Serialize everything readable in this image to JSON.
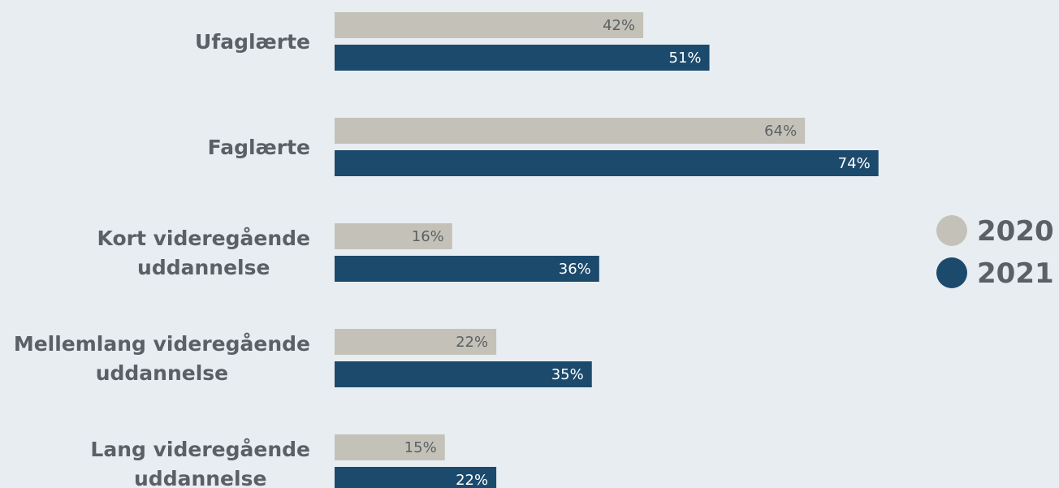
{
  "chart_data": {
    "type": "bar",
    "orientation": "horizontal",
    "categories": [
      [
        "Ufaglærte"
      ],
      [
        "Faglærte"
      ],
      [
        "Kort videregående",
        "uddannelse"
      ],
      [
        "Mellemlang videregående",
        "uddannelse"
      ],
      [
        "Lang videregående",
        "uddannelse"
      ]
    ],
    "series": [
      {
        "name": "2020",
        "values": [
          42,
          64,
          16,
          22,
          15
        ],
        "labels": [
          "42%",
          "64%",
          "16%",
          "22%",
          "15%"
        ],
        "color": "#c4c2b8",
        "label_color": "#5b6066"
      },
      {
        "name": "2021",
        "values": [
          51,
          74,
          36,
          35,
          22
        ],
        "labels": [
          "51%",
          "74%",
          "36%",
          "35%",
          "22%"
        ],
        "color": "#1c4a6d",
        "label_color": "#ffffff"
      }
    ],
    "xlim": [
      0,
      100
    ],
    "grid": false,
    "legend_position": "right",
    "colors": {
      "background": "#e8edf1",
      "text": "#5b6066"
    }
  }
}
